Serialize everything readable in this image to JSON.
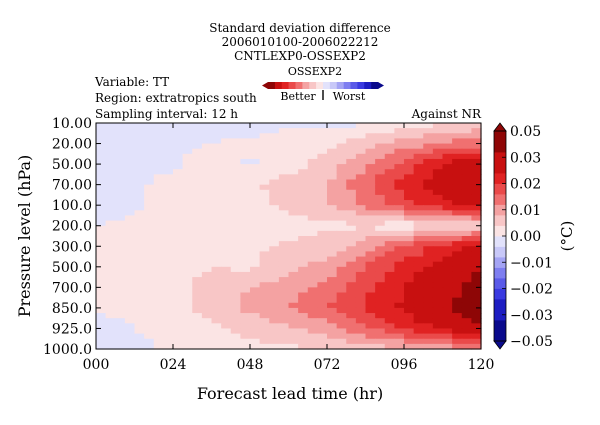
{
  "header": {
    "title_lines": [
      "Standard deviation difference",
      "2006010100-2006022212",
      "CNTLEXP0-OSSEXP2"
    ],
    "mini_bar_label": "OSSEXP2",
    "better_label": "Better",
    "worst_label": "Worst",
    "left_info": [
      "Variable: TT",
      "Region: extratropics south",
      "Sampling interval: 12 h"
    ],
    "right_info": "Against NR"
  },
  "chart_data": {
    "type": "heatmap",
    "xlabel": "Forecast lead time (hr)",
    "ylabel": "Pressure level (hPa)",
    "x": [
      0,
      12,
      24,
      36,
      48,
      60,
      72,
      84,
      96,
      108,
      120
    ],
    "x_tick_labels": [
      "000",
      "024",
      "048",
      "072",
      "096",
      "120"
    ],
    "x_tick_values": [
      0,
      24,
      48,
      72,
      96,
      120
    ],
    "y_tick_labels": [
      "10.00",
      "20.00",
      "50.00",
      "70.00",
      "100.0",
      "200.0",
      "300.0",
      "500.0",
      "700.0",
      "850.0",
      "925.0",
      "1000.0"
    ],
    "colorbar": {
      "label": "(°C)",
      "ticks": [
        "0.05",
        "0.03",
        "0.02",
        "0.01",
        "0.00",
        "−0.01",
        "−0.02",
        "−0.03",
        "−0.05"
      ],
      "tick_values": [
        0.05,
        0.03,
        0.02,
        0.01,
        0.0,
        -0.01,
        -0.02,
        -0.03,
        -0.05
      ],
      "levels": [
        -0.05,
        -0.04,
        -0.03,
        -0.025,
        -0.02,
        -0.015,
        -0.01,
        -0.005,
        0.0,
        0.005,
        0.01,
        0.015,
        0.02,
        0.025,
        0.03,
        0.04,
        0.05
      ],
      "colors": [
        "#0a0a8c",
        "#1d1dc2",
        "#3a3ae0",
        "#5a5ae8",
        "#7e7ef0",
        "#a4a4f4",
        "#c8c8f8",
        "#e2e2fb",
        "#fbe4e4",
        "#f8c6c6",
        "#f4a2a2",
        "#f07070",
        "#ea4a4a",
        "#e02222",
        "#c81010",
        "#8e0606"
      ],
      "colors_hex_note": ""
    },
    "values": [
      [
        -0.002,
        -0.002,
        -0.002,
        -0.002,
        -0.002,
        -0.001,
        -0.001,
        -0.001,
        0.002,
        0.004,
        0.006
      ],
      [
        -0.002,
        -0.002,
        -0.001,
        0.0,
        0.001,
        0.002,
        0.004,
        0.008,
        0.012,
        0.016,
        0.018
      ],
      [
        -0.002,
        -0.002,
        -0.001,
        0.004,
        -0.001,
        0.003,
        0.007,
        0.014,
        0.022,
        0.03,
        0.036
      ],
      [
        -0.002,
        -0.001,
        0.002,
        0.003,
        0.004,
        0.007,
        0.01,
        0.019,
        0.027,
        0.033,
        0.04
      ],
      [
        -0.002,
        -0.001,
        0.002,
        0.003,
        0.003,
        0.006,
        0.009,
        0.016,
        0.023,
        0.028,
        0.032
      ],
      [
        0.0,
        0.001,
        0.002,
        0.003,
        0.003,
        0.003,
        0.004,
        0.004,
        0.002,
        0.004,
        0.006
      ],
      [
        0.001,
        0.002,
        0.002,
        0.003,
        0.004,
        0.006,
        0.007,
        0.013,
        0.02,
        0.027,
        0.032
      ],
      [
        0.003,
        0.002,
        0.002,
        0.005,
        0.004,
        0.008,
        0.012,
        0.02,
        0.027,
        0.032,
        0.04
      ],
      [
        0.001,
        0.002,
        0.003,
        0.008,
        0.01,
        0.013,
        0.016,
        0.024,
        0.03,
        0.036,
        0.044
      ],
      [
        0.001,
        0.001,
        0.002,
        0.008,
        0.011,
        0.015,
        0.02,
        0.026,
        0.031,
        0.038,
        0.046
      ],
      [
        -0.002,
        0.0,
        0.001,
        0.004,
        0.007,
        0.009,
        0.012,
        0.019,
        0.026,
        0.031,
        0.038
      ],
      [
        -0.002,
        -0.001,
        0.001,
        0.002,
        0.003,
        0.004,
        0.005,
        0.007,
        0.009,
        0.012,
        0.016
      ]
    ]
  }
}
